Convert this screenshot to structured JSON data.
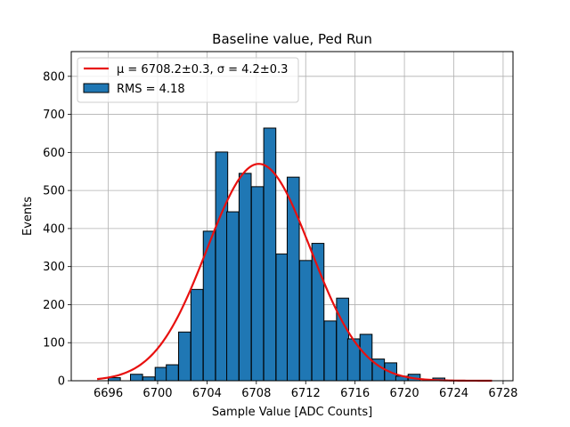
{
  "chart_data": {
    "type": "bar",
    "title": "Baseline value, Ped Run",
    "xlabel": "Sample Value [ADC Counts]",
    "ylabel": "Events",
    "xlim": [
      6693.0,
      6728.8
    ],
    "ylim": [
      0,
      865
    ],
    "xticks": [
      6696,
      6700,
      6704,
      6708,
      6712,
      6716,
      6720,
      6724,
      6728
    ],
    "yticks": [
      0,
      100,
      200,
      300,
      400,
      500,
      600,
      700,
      800
    ],
    "grid": true,
    "legend_position": "upper-left",
    "legend": {
      "fit_label": "μ = 6708.2±0.3, σ = 4.2±0.3",
      "hist_label": "RMS = 4.18"
    },
    "bar_color": "#1f77b4",
    "fit_color": "#e8100f",
    "histogram": {
      "bin_width": 0.98,
      "bins": [
        {
          "x0": 6696.0,
          "value": 8
        },
        {
          "x0": 6697.8,
          "value": 17
        },
        {
          "x0": 6698.8,
          "value": 10
        },
        {
          "x0": 6699.8,
          "value": 35
        },
        {
          "x0": 6700.7,
          "value": 42
        },
        {
          "x0": 6701.7,
          "value": 128
        },
        {
          "x0": 6702.7,
          "value": 240
        },
        {
          "x0": 6703.7,
          "value": 393
        },
        {
          "x0": 6704.7,
          "value": 601
        },
        {
          "x0": 6705.6,
          "value": 444
        },
        {
          "x0": 6706.6,
          "value": 545
        },
        {
          "x0": 6707.6,
          "value": 510
        },
        {
          "x0": 6708.6,
          "value": 664
        },
        {
          "x0": 6709.6,
          "value": 333
        },
        {
          "x0": 6710.5,
          "value": 535
        },
        {
          "x0": 6711.5,
          "value": 316
        },
        {
          "x0": 6712.5,
          "value": 361
        },
        {
          "x0": 6713.5,
          "value": 157
        },
        {
          "x0": 6714.5,
          "value": 217
        },
        {
          "x0": 6715.4,
          "value": 110
        },
        {
          "x0": 6716.4,
          "value": 122
        },
        {
          "x0": 6717.4,
          "value": 57
        },
        {
          "x0": 6718.4,
          "value": 47
        },
        {
          "x0": 6719.3,
          "value": 12
        },
        {
          "x0": 6720.3,
          "value": 17
        },
        {
          "x0": 6722.3,
          "value": 7
        }
      ]
    },
    "fit": {
      "type": "gaussian",
      "mu": 6708.2,
      "sigma": 4.2,
      "amplitude": 570,
      "x_range": [
        6695.1,
        6727.1
      ]
    }
  }
}
